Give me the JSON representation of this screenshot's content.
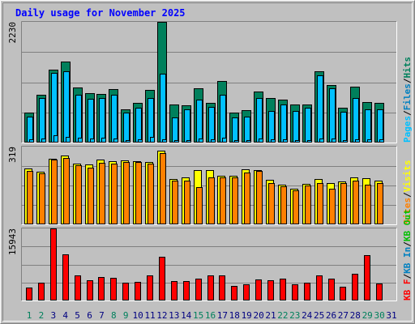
{
  "colors": {
    "background": "#c0c0c0",
    "title": "#0000ff",
    "frame_dark": "#808080",
    "frame_light": "#ffffff",
    "gridline": "#808080",
    "hits": "#00805c",
    "files": "#00c0ff",
    "pages": "#00c0ff",
    "sites": "#ff8000",
    "visits": "#ffff00",
    "kb_f": "#ff0000",
    "kb_in": "#0080c0",
    "kb_out": "#00c000",
    "weekend": "#00805c",
    "weekday": "#000080"
  },
  "chart_data": {
    "type": "bar",
    "title": "Daily usage for November 2025",
    "categories": [
      "1",
      "2",
      "3",
      "4",
      "5",
      "6",
      "7",
      "8",
      "9",
      "10",
      "11",
      "12",
      "13",
      "14",
      "15",
      "16",
      "17",
      "18",
      "19",
      "20",
      "21",
      "22",
      "23",
      "24",
      "25",
      "26",
      "27",
      "28",
      "29",
      "30",
      "31"
    ],
    "weekend_days": [
      "1",
      "2",
      "8",
      "9",
      "15",
      "16",
      "22",
      "23",
      "29",
      "30"
    ],
    "panels": [
      {
        "name": "hits-files-pages",
        "ymax_label": "2230",
        "ylim": [
          0,
          2230
        ],
        "legend": [
          {
            "label": "Pages",
            "color": "#00c0ff"
          },
          {
            "label": "Files",
            "color": "#0080c0"
          },
          {
            "label": "Hits",
            "color": "#00805c"
          }
        ],
        "series": [
          {
            "name": "Hits",
            "values": [
              550,
              880,
              1340,
              1490,
              1020,
              920,
              900,
              990,
              620,
              740,
              980,
              2230,
              710,
              690,
              1000,
              730,
              1130,
              560,
              600,
              950,
              820,
              800,
              700,
              710,
              1310,
              1070,
              640,
              1040,
              750,
              740,
              0
            ]
          },
          {
            "name": "Files",
            "values": [
              480,
              830,
              1280,
              1320,
              880,
              810,
              820,
              880,
              550,
              640,
              830,
              1270,
              470,
              620,
              790,
              660,
              890,
              460,
              480,
              820,
              590,
              710,
              580,
              650,
              1240,
              1000,
              570,
              830,
              610,
              610,
              0
            ]
          },
          {
            "name": "Pages",
            "values": [
              60,
              80,
              140,
              100,
              90,
              80,
              90,
              70,
              50,
              60,
              110,
              60,
              50,
              50,
              70,
              60,
              90,
              40,
              50,
              80,
              60,
              60,
              50,
              50,
              70,
              70,
              50,
              60,
              60,
              60,
              0
            ]
          }
        ]
      },
      {
        "name": "visits-sites",
        "ymax_label": "319",
        "ylim": [
          0,
          319
        ],
        "legend": [
          {
            "label": "Sites",
            "color": "#ff8000"
          },
          {
            "label": "Visits",
            "color": "#ffff00"
          }
        ],
        "series": [
          {
            "name": "Visits",
            "values": [
              228,
              216,
              270,
              284,
              250,
              245,
              265,
              258,
              264,
              260,
              255,
              304,
              187,
              193,
              221,
              222,
              198,
              200,
              225,
              222,
              182,
              162,
              146,
              167,
              186,
              170,
              176,
              193,
              188,
              181,
              0
            ]
          },
          {
            "name": "Sites",
            "values": [
              220,
              211,
              265,
              272,
              243,
              232,
              253,
              250,
              257,
              255,
              248,
              291,
              178,
              180,
              153,
              192,
              192,
              193,
              214,
              218,
              168,
              157,
              140,
              158,
              170,
              147,
              168,
              181,
              162,
              171,
              0
            ]
          }
        ]
      },
      {
        "name": "kbytes",
        "ymax_label": "15943",
        "ylim": [
          0,
          15943
        ],
        "legend": [
          {
            "label": "KB F",
            "color": "#ff0000"
          },
          {
            "label": "KB In",
            "color": "#0080c0"
          },
          {
            "label": "KB Out",
            "color": "#00c000"
          }
        ],
        "series": [
          {
            "name": "KB F",
            "values": [
              2920,
              4030,
              15943,
              10210,
              5640,
              4480,
              5220,
              5070,
              3920,
              4160,
              5560,
              9730,
              4330,
              4330,
              4880,
              5550,
              5540,
              3270,
              3590,
              4720,
              4560,
              4770,
              3500,
              3890,
              5600,
              4780,
              3100,
              6000,
              10040,
              3700,
              0
            ]
          }
        ]
      }
    ]
  }
}
